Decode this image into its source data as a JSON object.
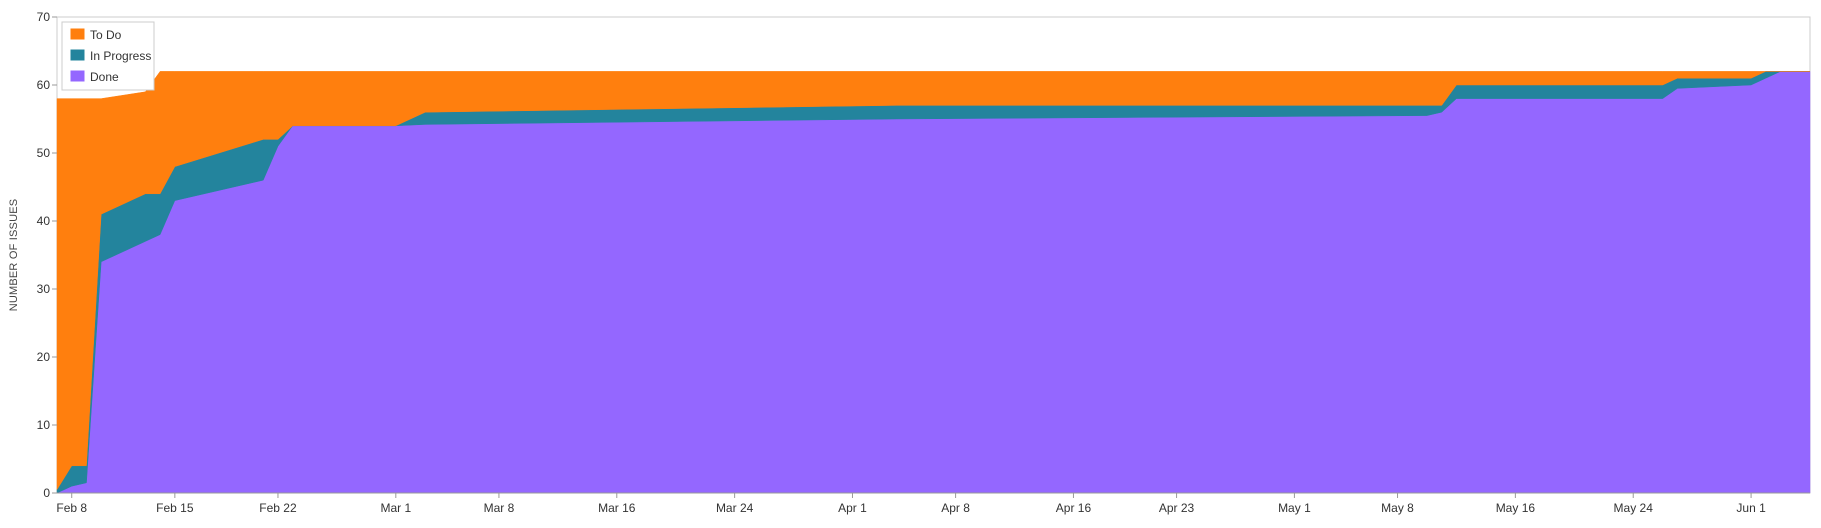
{
  "chart_data": {
    "type": "area",
    "stacked": true,
    "ylabel": "NUMBER OF ISSUES",
    "ylim": [
      0,
      70
    ],
    "yticks": [
      0,
      10,
      20,
      30,
      40,
      50,
      60,
      70
    ],
    "xlim": [
      "2024-02-07",
      "2024-06-05"
    ],
    "xticks": [
      {
        "date": "2024-02-08",
        "label": "Feb 8"
      },
      {
        "date": "2024-02-15",
        "label": "Feb 15"
      },
      {
        "date": "2024-02-22",
        "label": "Feb 22"
      },
      {
        "date": "2024-03-01",
        "label": "Mar 1"
      },
      {
        "date": "2024-03-08",
        "label": "Mar 8"
      },
      {
        "date": "2024-03-16",
        "label": "Mar 16"
      },
      {
        "date": "2024-03-24",
        "label": "Mar 24"
      },
      {
        "date": "2024-04-01",
        "label": "Apr 1"
      },
      {
        "date": "2024-04-08",
        "label": "Apr 8"
      },
      {
        "date": "2024-04-16",
        "label": "Apr 16"
      },
      {
        "date": "2024-04-23",
        "label": "Apr 23"
      },
      {
        "date": "2024-05-01",
        "label": "May 1"
      },
      {
        "date": "2024-05-08",
        "label": "May 8"
      },
      {
        "date": "2024-05-16",
        "label": "May 16"
      },
      {
        "date": "2024-05-24",
        "label": "May 24"
      },
      {
        "date": "2024-06-01",
        "label": "Jun 1"
      }
    ],
    "legend_position": "top-left",
    "grid": false,
    "x": [
      "2024-02-07",
      "2024-02-08",
      "2024-02-09",
      "2024-02-10",
      "2024-02-13",
      "2024-02-14",
      "2024-02-15",
      "2024-02-21",
      "2024-02-22",
      "2024-02-23",
      "2024-03-01",
      "2024-03-03",
      "2024-04-04",
      "2024-05-10",
      "2024-05-11",
      "2024-05-12",
      "2024-05-26",
      "2024-05-27",
      "2024-06-01",
      "2024-06-02",
      "2024-06-03",
      "2024-06-05"
    ],
    "series": [
      {
        "name": "Done",
        "color": "#9467ff",
        "values": [
          0,
          1,
          1.5,
          34,
          37,
          38,
          43,
          46,
          51,
          54,
          54,
          54.2,
          55,
          55.5,
          56,
          58,
          58,
          59.5,
          60,
          61,
          62,
          62
        ]
      },
      {
        "name": "In Progress",
        "color": "#23849d",
        "values": [
          0.5,
          3,
          2.5,
          7,
          7,
          6,
          5,
          6,
          1,
          0,
          0,
          1.8,
          2,
          1.5,
          1,
          2,
          2,
          1.5,
          1,
          1,
          0,
          0
        ]
      },
      {
        "name": "To Do",
        "color": "#ff7f0e",
        "values": [
          57.5,
          54,
          54,
          17,
          15,
          18,
          14,
          10,
          10,
          8,
          8,
          6,
          5,
          5,
          5,
          2,
          2,
          1,
          1,
          0,
          0,
          0
        ]
      }
    ]
  }
}
